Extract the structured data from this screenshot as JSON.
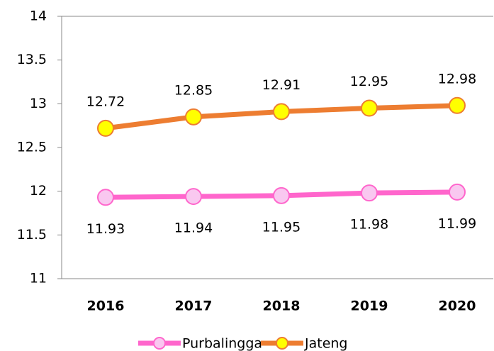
{
  "chart_data": {
    "type": "line",
    "categories": [
      "2016",
      "2017",
      "2018",
      "2019",
      "2020"
    ],
    "series": [
      {
        "name": "Purbalingga",
        "color": "#ff66cc",
        "marker_fill": "#f9c8f0",
        "values": [
          11.93,
          11.94,
          11.95,
          11.98,
          11.99
        ]
      },
      {
        "name": "Jateng",
        "color": "#ed7d31",
        "marker_fill": "#ffff00",
        "values": [
          12.72,
          12.85,
          12.91,
          12.95,
          12.98
        ]
      }
    ],
    "ylim": [
      11,
      14
    ],
    "yticks": [
      11,
      11.5,
      12,
      12.5,
      13,
      13.5,
      14
    ],
    "legend": "bottom"
  }
}
